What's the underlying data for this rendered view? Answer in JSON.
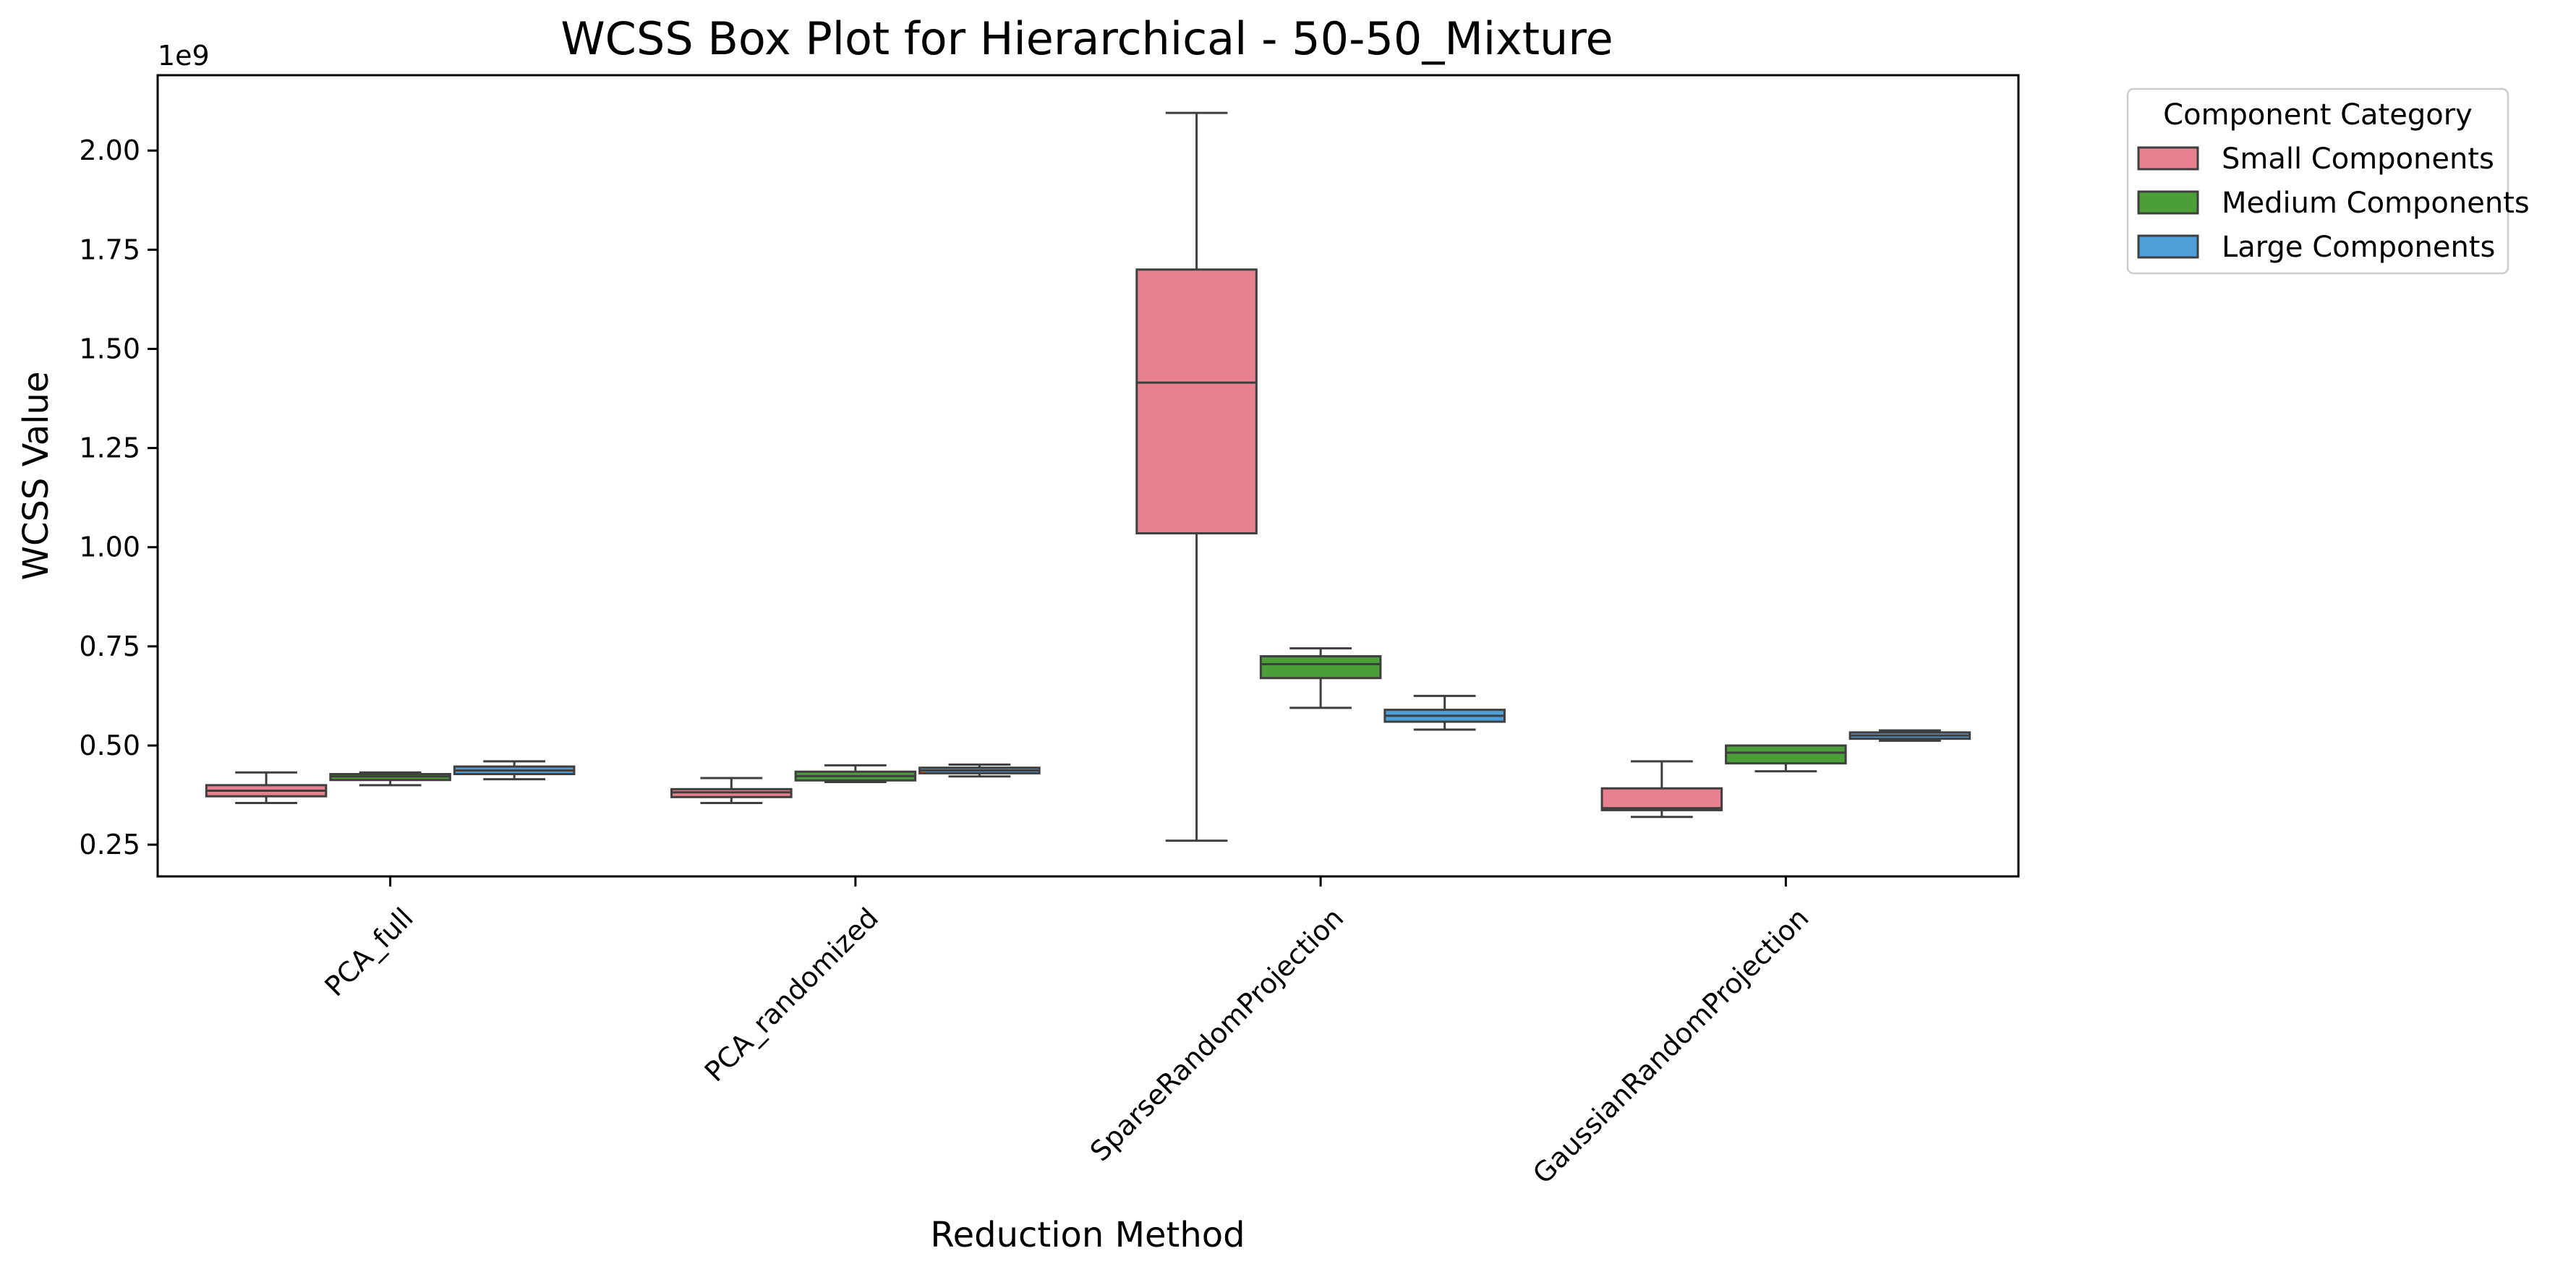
{
  "chart_data": {
    "type": "box",
    "title": "WCSS Box Plot for Hierarchical - 50-50_Mixture",
    "xlabel": "Reduction Method",
    "ylabel": "WCSS Value",
    "y_scale_label": "1e9",
    "ylim": [
      0.17,
      2.19
    ],
    "yticks": [
      0.25,
      0.5,
      0.75,
      1.0,
      1.25,
      1.5,
      1.75,
      2.0
    ],
    "ytick_labels": [
      "0.25",
      "0.50",
      "0.75",
      "1.00",
      "1.25",
      "1.50",
      "1.75",
      "2.00"
    ],
    "grid": false,
    "legend": {
      "title": "Component Category",
      "placement": "outside-top-right"
    },
    "categories": [
      "PCA_full",
      "PCA_randomized",
      "SparseRandomProjection",
      "GaussianRandomProjection"
    ],
    "series": [
      {
        "name": "Small Components",
        "color": "#e8808f",
        "boxes": [
          {
            "whislo": 0.355,
            "q1": 0.372,
            "med": 0.386,
            "q3": 0.4,
            "whishi": 0.432
          },
          {
            "whislo": 0.355,
            "q1": 0.37,
            "med": 0.382,
            "q3": 0.39,
            "whishi": 0.418
          },
          {
            "whislo": 0.26,
            "q1": 1.035,
            "med": 1.415,
            "q3": 1.7,
            "whishi": 2.095
          },
          {
            "whislo": 0.32,
            "q1": 0.337,
            "med": 0.342,
            "q3": 0.392,
            "whishi": 0.46
          }
        ]
      },
      {
        "name": "Medium Components",
        "color": "#4c9f38",
        "boxes": [
          {
            "whislo": 0.4,
            "q1": 0.413,
            "med": 0.422,
            "q3": 0.428,
            "whishi": 0.432
          },
          {
            "whislo": 0.408,
            "q1": 0.412,
            "med": 0.423,
            "q3": 0.434,
            "whishi": 0.45
          },
          {
            "whislo": 0.595,
            "q1": 0.67,
            "med": 0.705,
            "q3": 0.725,
            "whishi": 0.745
          },
          {
            "whislo": 0.435,
            "q1": 0.455,
            "med": 0.482,
            "q3": 0.5,
            "whishi": 0.5
          }
        ]
      },
      {
        "name": "Large Components",
        "color": "#4f9fdb",
        "boxes": [
          {
            "whislo": 0.415,
            "q1": 0.428,
            "med": 0.437,
            "q3": 0.447,
            "whishi": 0.46
          },
          {
            "whislo": 0.422,
            "q1": 0.43,
            "med": 0.437,
            "q3": 0.444,
            "whishi": 0.452
          },
          {
            "whislo": 0.54,
            "q1": 0.56,
            "med": 0.575,
            "q3": 0.59,
            "whishi": 0.625
          },
          {
            "whislo": 0.512,
            "q1": 0.517,
            "med": 0.525,
            "q3": 0.533,
            "whishi": 0.538
          }
        ]
      }
    ]
  }
}
